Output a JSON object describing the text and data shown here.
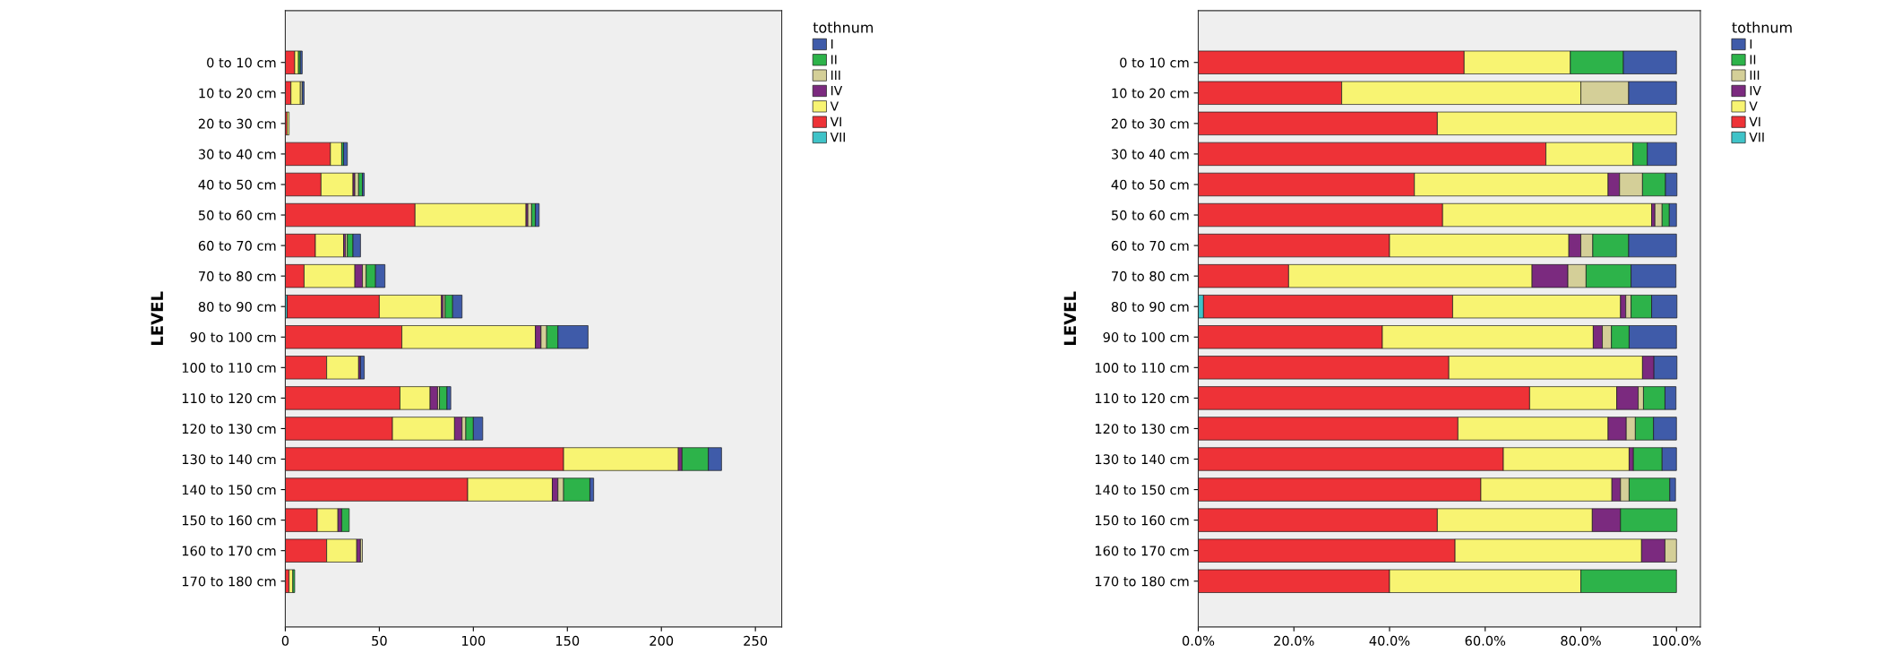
{
  "chart_data": [
    {
      "type": "bar",
      "orientation": "horizontal",
      "stacked": true,
      "ylabel": "LEVEL",
      "legend_title": "tothnum",
      "legend": "right",
      "grid": false,
      "categories": [
        "0 to 10 cm",
        "10 to 20 cm",
        "20 to 30 cm",
        "30 to 40 cm",
        "40 to 50 cm",
        "50 to 60 cm",
        "60 to 70 cm",
        "70 to 80 cm",
        "80 to 90 cm",
        "90 to 100 cm",
        "100 to 110 cm",
        "110 to 120 cm",
        "120 to 130 cm",
        "130 to 140 cm",
        "140 to 150 cm",
        "150 to 160 cm",
        "160 to 170 cm",
        "170 to 180 cm"
      ],
      "xlim": [
        0,
        264
      ],
      "xticks": [
        0,
        50,
        100,
        150,
        200,
        250
      ],
      "series": [
        {
          "name": "VII",
          "color": "#3fc3c8",
          "values": [
            0,
            0,
            0,
            0,
            0,
            0,
            0,
            0,
            1,
            0,
            0,
            0,
            0,
            0,
            0,
            0,
            0,
            0
          ]
        },
        {
          "name": "VI",
          "color": "#ee3237",
          "values": [
            5,
            3,
            1,
            24,
            19,
            69,
            16,
            10,
            49,
            62,
            22,
            61,
            57,
            148,
            97,
            17,
            22,
            2
          ]
        },
        {
          "name": "V",
          "color": "#f8f472",
          "values": [
            2,
            5,
            1,
            6,
            17,
            59,
            15,
            27,
            33,
            71,
            17,
            16,
            33,
            61,
            45,
            11,
            16,
            2
          ]
        },
        {
          "name": "IV",
          "color": "#7b2a7f",
          "values": [
            0,
            0,
            0,
            0,
            1,
            1,
            1,
            4,
            1,
            3,
            1,
            4,
            4,
            2,
            3,
            2,
            2,
            0
          ]
        },
        {
          "name": "III",
          "color": "#d4cf98",
          "values": [
            0,
            1,
            0,
            0,
            2,
            2,
            1,
            2,
            1,
            3,
            0,
            1,
            2,
            0,
            3,
            0,
            1,
            0
          ]
        },
        {
          "name": "II",
          "color": "#2db34a",
          "values": [
            1,
            0,
            0,
            1,
            2,
            2,
            3,
            5,
            4,
            6,
            0,
            4,
            4,
            14,
            14,
            4,
            0,
            1
          ]
        },
        {
          "name": "I",
          "color": "#3f5ba9",
          "values": [
            1,
            1,
            0,
            2,
            1,
            2,
            4,
            5,
            5,
            16,
            2,
            2,
            5,
            7,
            2,
            0,
            0,
            0
          ]
        }
      ]
    },
    {
      "type": "bar",
      "orientation": "horizontal",
      "stacked": true,
      "ylabel": "LEVEL",
      "legend_title": "tothnum",
      "legend": "right",
      "grid": false,
      "categories": [
        "0 to 10 cm",
        "10 to 20 cm",
        "20 to 30 cm",
        "30 to 40 cm",
        "40 to 50 cm",
        "50 to 60 cm",
        "60 to 70 cm",
        "70 to 80 cm",
        "80 to 90 cm",
        "90 to 100 cm",
        "100 to 110 cm",
        "110 to 120 cm",
        "120 to 130 cm",
        "130 to 140 cm",
        "140 to 150 cm",
        "150 to 160 cm",
        "160 to 170 cm",
        "170 to 180 cm"
      ],
      "xlim": [
        0,
        105
      ],
      "xticks": [
        {
          "value": 0,
          "label": "0.0%"
        },
        {
          "value": 20,
          "label": "20.0%"
        },
        {
          "value": 40,
          "label": "40.0%"
        },
        {
          "value": 60,
          "label": "60.0%"
        },
        {
          "value": 80,
          "label": "80.0%"
        },
        {
          "value": 100,
          "label": "100.0%"
        }
      ],
      "series": [
        {
          "name": "VII",
          "color": "#3fc3c8",
          "values": [
            0,
            0,
            0,
            0,
            0,
            0,
            0,
            0,
            1.1,
            0,
            0,
            0,
            0,
            0,
            0,
            0,
            0,
            0
          ]
        },
        {
          "name": "VI",
          "color": "#ee3237",
          "values": [
            55.6,
            30,
            50,
            72.7,
            45.2,
            51.1,
            40,
            18.9,
            52.1,
            38.5,
            52.4,
            69.3,
            54.3,
            63.8,
            59.1,
            50,
            53.7,
            40
          ]
        },
        {
          "name": "V",
          "color": "#f8f472",
          "values": [
            22.2,
            50,
            50,
            18.2,
            40.5,
            43.7,
            37.5,
            50.9,
            35.1,
            44.1,
            40.5,
            18.2,
            31.4,
            26.3,
            27.4,
            32.4,
            39.0,
            40
          ]
        },
        {
          "name": "IV",
          "color": "#7b2a7f",
          "values": [
            0,
            0,
            0,
            0,
            2.4,
            0.7,
            2.5,
            7.5,
            1.1,
            1.9,
            2.4,
            4.5,
            3.8,
            0.9,
            1.8,
            5.9,
            4.9,
            0
          ]
        },
        {
          "name": "III",
          "color": "#d4cf98",
          "values": [
            0,
            10,
            0,
            0,
            4.8,
            1.5,
            2.5,
            3.8,
            1.1,
            1.9,
            0,
            1.1,
            1.9,
            0,
            1.8,
            0,
            2.4,
            0
          ]
        },
        {
          "name": "II",
          "color": "#2db34a",
          "values": [
            11.1,
            0,
            0,
            3.0,
            4.8,
            1.5,
            7.5,
            9.4,
            4.3,
            3.7,
            0,
            4.5,
            3.8,
            6.0,
            8.5,
            11.8,
            0,
            20
          ]
        },
        {
          "name": "I",
          "color": "#3f5ba9",
          "values": [
            11.1,
            10,
            0,
            6.1,
            2.4,
            1.5,
            10,
            9.4,
            5.3,
            9.9,
            4.8,
            2.3,
            4.8,
            3.0,
            1.2,
            0,
            0,
            0
          ]
        }
      ]
    }
  ]
}
